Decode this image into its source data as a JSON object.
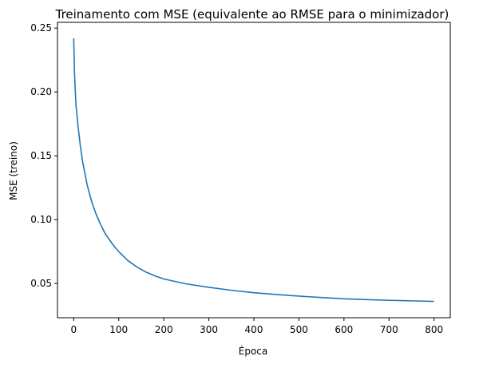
{
  "chart_data": {
    "type": "line",
    "title": "Treinamento com MSE (equivalente ao RMSE para o minimizador)",
    "xlabel": "Época",
    "ylabel": "MSE (treino)",
    "xlim": [
      -36,
      836
    ],
    "ylim": [
      0.0232,
      0.2545
    ],
    "x_ticks": [
      0,
      100,
      200,
      300,
      400,
      500,
      600,
      700,
      800
    ],
    "x_tick_labels": [
      "0",
      "100",
      "200",
      "300",
      "400",
      "500",
      "600",
      "700",
      "800"
    ],
    "y_ticks": [
      0.05,
      0.1,
      0.15,
      0.2,
      0.25
    ],
    "y_tick_labels": [
      "0.05",
      "0.10",
      "0.15",
      "0.20",
      "0.25"
    ],
    "grid": false,
    "series": [
      {
        "name": "MSE (treino)",
        "color": "#1f77b4",
        "x": [
          0,
          2,
          5,
          10,
          15,
          20,
          25,
          30,
          40,
          50,
          60,
          70,
          80,
          90,
          100,
          120,
          140,
          160,
          180,
          200,
          250,
          300,
          350,
          400,
          450,
          500,
          550,
          600,
          650,
          700,
          750,
          800
        ],
        "y": [
          0.242,
          0.213,
          0.19,
          0.172,
          0.157,
          0.145,
          0.136,
          0.127,
          0.114,
          0.104,
          0.096,
          0.089,
          0.084,
          0.079,
          0.075,
          0.068,
          0.063,
          0.059,
          0.056,
          0.0535,
          0.0497,
          0.047,
          0.0447,
          0.0428,
          0.0414,
          0.0401,
          0.039,
          0.038,
          0.0374,
          0.0368,
          0.0364,
          0.036
        ]
      }
    ]
  }
}
